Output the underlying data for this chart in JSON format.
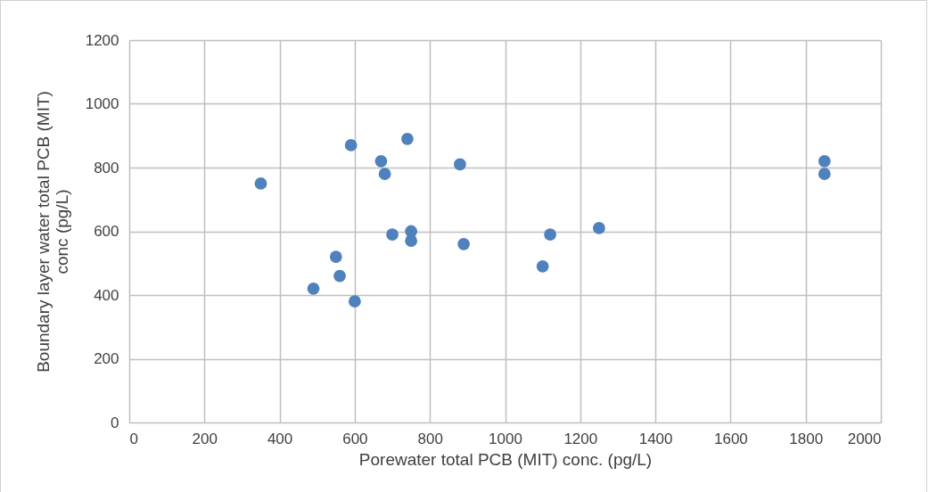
{
  "chart_data": {
    "type": "scatter",
    "xlabel": "Porewater total PCB (MIT) conc. (pg/L)",
    "ylabel": "Boundary layer water total PCB (MIT) conc (pg/L)",
    "x": [
      350,
      490,
      550,
      560,
      590,
      600,
      670,
      680,
      700,
      740,
      750,
      750,
      880,
      890,
      1100,
      1120,
      1250,
      1850,
      1850
    ],
    "series": [
      {
        "color": "#4f81bd",
        "values": [
          750,
          420,
          520,
          460,
          870,
          380,
          820,
          780,
          590,
          890,
          600,
          570,
          810,
          560,
          490,
          590,
          610,
          820,
          780
        ]
      }
    ],
    "xlim": [
      0,
      2000
    ],
    "xticks": [
      0,
      200,
      400,
      600,
      800,
      1000,
      1200,
      1400,
      1600,
      1800,
      2000
    ],
    "ylim": [
      0,
      1200
    ],
    "yticks": [
      0,
      200,
      400,
      600,
      800,
      1000,
      1200
    ],
    "grid": true,
    "marker": "circle"
  }
}
